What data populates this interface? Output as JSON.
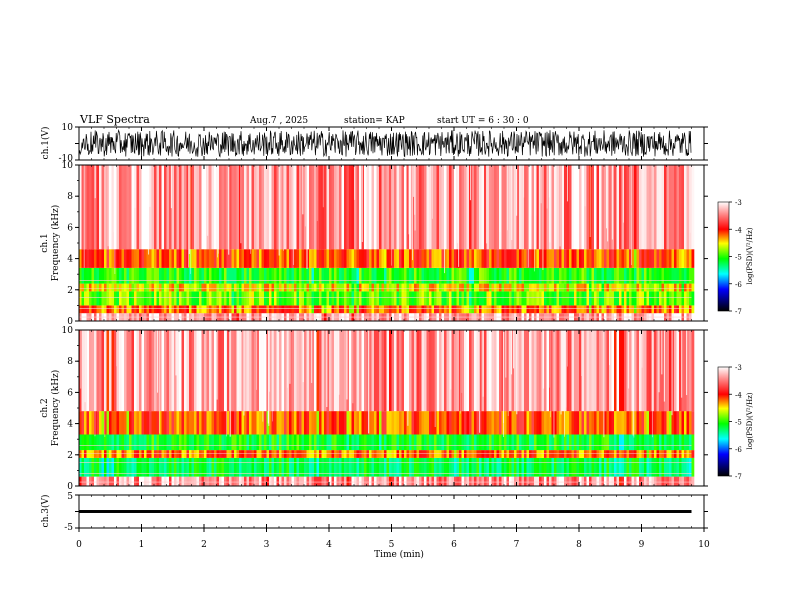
{
  "header": {
    "title": "VLF Spectra",
    "date": "Aug.7 , 2025",
    "station": "station= KAP",
    "start": "start UT = 6 : 30 : 0"
  },
  "chart_data": {
    "type": "heatmap",
    "xlabel": "Time (min)",
    "xlim": [
      0,
      10
    ],
    "xticks": [
      0,
      1,
      2,
      3,
      4,
      5,
      6,
      7,
      8,
      9,
      10
    ],
    "data_end_min": 9.8,
    "panels": [
      {
        "id": "ch1-waveform",
        "kind": "waveform",
        "ylabel": "ch.1(V)",
        "ylim": [
          -10,
          10
        ],
        "yticklabels": [
          "10",
          "-10"
        ],
        "amplitude_range": [
          -8,
          8
        ]
      },
      {
        "id": "ch1-spectrogram",
        "kind": "spectrogram",
        "ylabel_channel": "ch.1",
        "ylabel": "Frequency (kHz)",
        "ylim": [
          0,
          10
        ],
        "yticks": [
          0,
          2,
          4,
          6,
          8,
          10
        ],
        "colorbar": {
          "label": "log(PSD)(V²/Hz)",
          "range": [
            -7,
            -3
          ],
          "ticks": [
            -3,
            -4,
            -5,
            -6,
            -7
          ]
        },
        "bands": [
          {
            "from_khz": 0.0,
            "to_khz": 0.5,
            "log_psd": -3.2
          },
          {
            "from_khz": 0.5,
            "to_khz": 1.0,
            "log_psd": -4.0
          },
          {
            "from_khz": 1.0,
            "to_khz": 1.9,
            "log_psd": -4.6
          },
          {
            "from_khz": 1.9,
            "to_khz": 2.4,
            "log_psd": -4.3
          },
          {
            "from_khz": 2.4,
            "to_khz": 3.4,
            "log_psd": -4.8
          },
          {
            "from_khz": 3.4,
            "to_khz": 4.6,
            "log_psd": -3.9
          },
          {
            "from_khz": 4.6,
            "to_khz": 10.0,
            "log_psd": -3.3
          }
        ]
      },
      {
        "id": "ch2-spectrogram",
        "kind": "spectrogram",
        "ylabel_channel": "ch.2",
        "ylabel": "Frequency (kHz)",
        "ylim": [
          0,
          10
        ],
        "yticks": [
          0,
          2,
          4,
          6,
          8,
          10
        ],
        "colorbar": {
          "label": "log(PSD)(V²/Hz)",
          "range": [
            -7,
            -3
          ],
          "ticks": [
            -3,
            -4,
            -5,
            -6,
            -7
          ]
        },
        "bands": [
          {
            "from_khz": 0.0,
            "to_khz": 0.6,
            "log_psd": -3.3
          },
          {
            "from_khz": 0.6,
            "to_khz": 1.8,
            "log_psd": -5.0
          },
          {
            "from_khz": 1.8,
            "to_khz": 2.3,
            "log_psd": -4.0
          },
          {
            "from_khz": 2.3,
            "to_khz": 3.3,
            "log_psd": -4.9
          },
          {
            "from_khz": 3.3,
            "to_khz": 4.8,
            "log_psd": -3.9
          },
          {
            "from_khz": 4.8,
            "to_khz": 10.0,
            "log_psd": -3.3
          }
        ]
      },
      {
        "id": "ch3-waveform",
        "kind": "waveform",
        "ylabel": "ch.3(V)",
        "ylim": [
          -5,
          5
        ],
        "yticklabels": [
          "5",
          "-5"
        ],
        "amplitude_range": [
          -0.3,
          0.3
        ]
      }
    ]
  }
}
